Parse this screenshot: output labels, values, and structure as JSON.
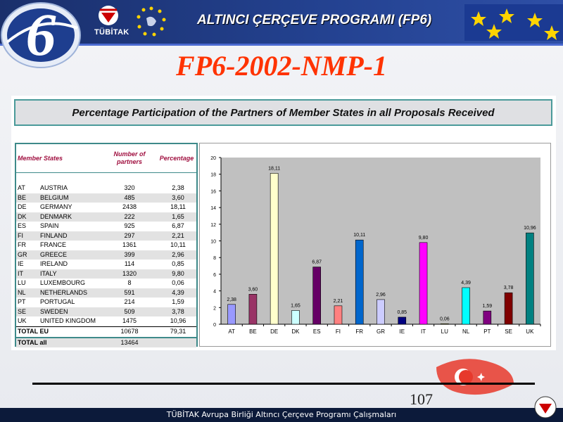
{
  "header": {
    "title": "ALTINCI ÇERÇEVE PROGRAMI (FP6)",
    "org_label": "TÜBİTAK"
  },
  "slide_title": "FP6-2002-NMP-1",
  "panel_title": "Percentage Participation of the Partners of Member States in all Proposals Received",
  "table": {
    "headers": {
      "member_states": "Member States",
      "number_of_partners": "Number of partners",
      "percentage": "Percentage"
    },
    "rows": [
      {
        "code": "AT",
        "name": "AUSTRIA",
        "partners": "320",
        "percentage": "2,38"
      },
      {
        "code": "BE",
        "name": "BELGIUM",
        "partners": "485",
        "percentage": "3,60"
      },
      {
        "code": "DE",
        "name": "GERMANY",
        "partners": "2438",
        "percentage": "18,11"
      },
      {
        "code": "DK",
        "name": "DENMARK",
        "partners": "222",
        "percentage": "1,65"
      },
      {
        "code": "ES",
        "name": "SPAIN",
        "partners": "925",
        "percentage": "6,87"
      },
      {
        "code": "FI",
        "name": "FINLAND",
        "partners": "297",
        "percentage": "2,21"
      },
      {
        "code": "FR",
        "name": "FRANCE",
        "partners": "1361",
        "percentage": "10,11"
      },
      {
        "code": "GR",
        "name": "GREECE",
        "partners": "399",
        "percentage": "2,96"
      },
      {
        "code": "IE",
        "name": "IRELAND",
        "partners": "114",
        "percentage": "0,85"
      },
      {
        "code": "IT",
        "name": "ITALY",
        "partners": "1320",
        "percentage": "9,80"
      },
      {
        "code": "LU",
        "name": "LUXEMBOURG",
        "partners": "8",
        "percentage": "0,06"
      },
      {
        "code": "NL",
        "name": "NETHERLANDS",
        "partners": "591",
        "percentage": "4,39"
      },
      {
        "code": "PT",
        "name": "PORTUGAL",
        "partners": "214",
        "percentage": "1,59"
      },
      {
        "code": "SE",
        "name": "SWEDEN",
        "partners": "509",
        "percentage": "3,78"
      },
      {
        "code": "UK",
        "name": "UNITED KINGDOM",
        "partners": "1475",
        "percentage": "10,96"
      }
    ],
    "total_eu": {
      "label": "TOTAL EU",
      "partners": "10678",
      "percentage": "79,31"
    },
    "total_all": {
      "label": "TOTAL all",
      "partners": "13464",
      "percentage": ""
    }
  },
  "chart_data": {
    "type": "bar",
    "categories": [
      "AT",
      "BE",
      "DE",
      "DK",
      "ES",
      "FI",
      "FR",
      "GR",
      "IE",
      "IT",
      "LU",
      "NL",
      "PT",
      "SE",
      "UK"
    ],
    "values": [
      2.38,
      3.6,
      18.11,
      1.65,
      6.87,
      2.21,
      10.11,
      2.96,
      0.85,
      9.8,
      0.06,
      4.39,
      1.59,
      3.78,
      10.96
    ],
    "value_labels": [
      "2,38",
      "3,60",
      "18,11",
      "1,65",
      "6,87",
      "2,21",
      "10,11",
      "2,96",
      "0,85",
      "9,80",
      "0,06",
      "4,39",
      "1,59",
      "3,78",
      "10,96"
    ],
    "bar_colors": [
      "#9999ff",
      "#993366",
      "#ffffcc",
      "#ccffff",
      "#660066",
      "#ff8080",
      "#0066cc",
      "#ccccff",
      "#000080",
      "#ff00ff",
      "#ffff00",
      "#00ffff",
      "#800080",
      "#800000",
      "#008080"
    ],
    "ylim": [
      0,
      20
    ],
    "yticks": [
      0,
      2,
      4,
      6,
      8,
      10,
      12,
      14,
      16,
      18,
      20
    ],
    "title": "",
    "xlabel": "",
    "ylabel": "",
    "plot_background": "#c0c0c0",
    "grid": false,
    "legend": false
  },
  "footer": {
    "text": "TÜBİTAK Avrupa Birliği Altıncı Çerçeve Programı Çalışmaları",
    "page_number": "107"
  },
  "colors": {
    "title_red": "#ff3300",
    "header_blue": "#23418f",
    "teal_border": "#3e8a8a"
  }
}
